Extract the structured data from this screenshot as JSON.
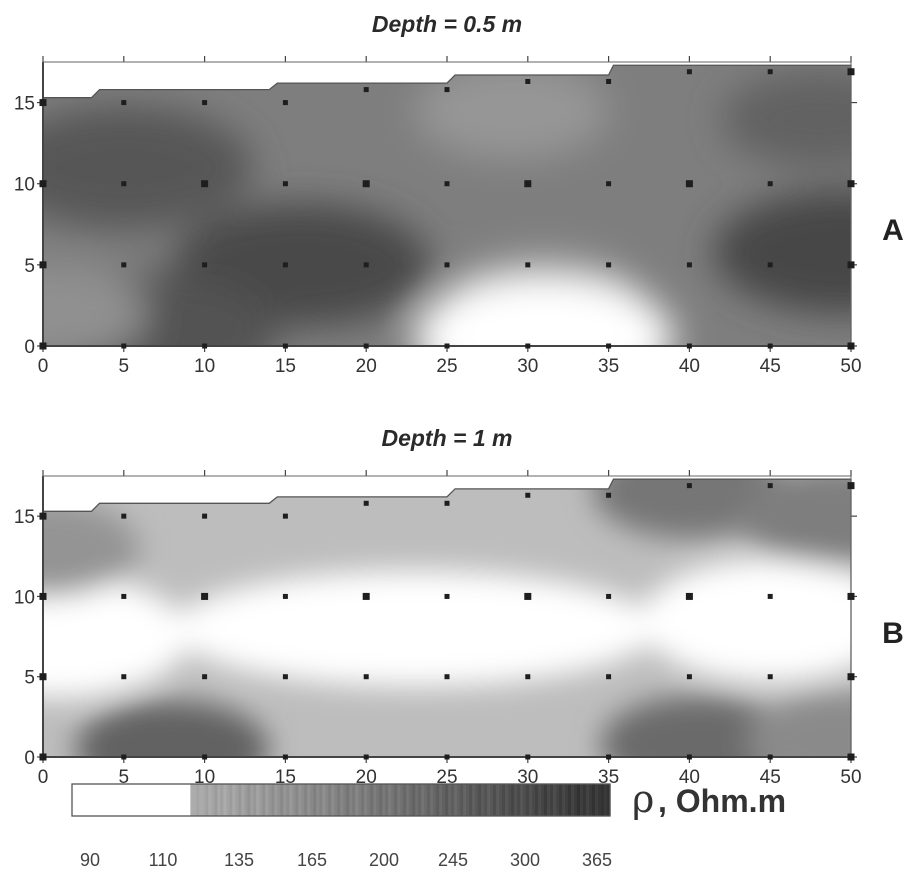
{
  "chart_data": [
    {
      "type": "heatmap",
      "title": "Depth = 0.5 m",
      "panel_label": "A",
      "xlabel": "",
      "ylabel": "",
      "xlim": [
        0,
        50
      ],
      "ylim": [
        0,
        17.5
      ],
      "xticks": [
        "0",
        "5",
        "10",
        "15",
        "20",
        "25",
        "30",
        "35",
        "40",
        "45",
        "50"
      ],
      "yticks": [
        "0",
        "5",
        "10",
        "15"
      ],
      "grid": false,
      "measurement_points": {
        "x": [
          0,
          5,
          10,
          15,
          20,
          25,
          30,
          35,
          40,
          45,
          50
        ],
        "y": [
          0,
          5,
          10,
          15
        ]
      },
      "top_boundary": [
        [
          0,
          15.3
        ],
        [
          3,
          15.3
        ],
        [
          3.5,
          15.8
        ],
        [
          14,
          15.8
        ],
        [
          14.5,
          16.2
        ],
        [
          25,
          16.2
        ],
        [
          25.5,
          16.7
        ],
        [
          35,
          16.7
        ],
        [
          35.3,
          17.3
        ],
        [
          50,
          17.3
        ]
      ],
      "anomalies": [
        {
          "x": 5,
          "y": 11,
          "value": 330
        },
        {
          "x": 16,
          "y": 5,
          "value": 360
        },
        {
          "x": 6.5,
          "y": 0.6,
          "value": 340
        },
        {
          "x": 49.5,
          "y": 5.8,
          "value": 370
        },
        {
          "x": 48,
          "y": 14,
          "value": 300
        },
        {
          "x": 29,
          "y": 14.5,
          "value": 170
        },
        {
          "x": 31,
          "y": 3,
          "value": 165
        },
        {
          "x": 31,
          "y": 0.5,
          "value": 95
        },
        {
          "x": 0.5,
          "y": 2,
          "value": 185
        }
      ]
    },
    {
      "type": "heatmap",
      "title": "Depth = 1 m",
      "panel_label": "B",
      "xlabel": "",
      "ylabel": "",
      "xlim": [
        0,
        50
      ],
      "ylim": [
        0,
        17.5
      ],
      "xticks": [
        "0",
        "5",
        "10",
        "15",
        "20",
        "25",
        "30",
        "35",
        "40",
        "45",
        "50"
      ],
      "yticks": [
        "0",
        "5",
        "10",
        "15"
      ],
      "grid": false,
      "measurement_points": {
        "x": [
          0,
          5,
          10,
          15,
          20,
          25,
          30,
          35,
          40,
          45,
          50
        ],
        "y": [
          0,
          5,
          10,
          15
        ]
      },
      "top_boundary": [
        [
          0,
          15.3
        ],
        [
          3,
          15.3
        ],
        [
          3.5,
          15.8
        ],
        [
          14,
          15.8
        ],
        [
          14.5,
          16.2
        ],
        [
          25,
          16.2
        ],
        [
          25.5,
          16.7
        ],
        [
          35,
          16.7
        ],
        [
          35.3,
          17.3
        ],
        [
          50,
          17.3
        ]
      ],
      "anomalies": [
        {
          "x": 23,
          "y": 8,
          "value": 95
        },
        {
          "x": 1,
          "y": 7.5,
          "value": 100
        },
        {
          "x": 45,
          "y": 8.5,
          "value": 100
        },
        {
          "x": 8,
          "y": 0.5,
          "value": 300
        },
        {
          "x": 40.5,
          "y": 0.8,
          "value": 280
        },
        {
          "x": 40,
          "y": 16.6,
          "value": 250
        },
        {
          "x": 49,
          "y": 15,
          "value": 230
        },
        {
          "x": 0,
          "y": 13,
          "value": 175
        },
        {
          "x": 49.5,
          "y": 1,
          "value": 200
        }
      ]
    }
  ],
  "colorbar": {
    "title_symbol": "ρ",
    "title_text": ", Ohm.m",
    "labels": [
      "90",
      "110",
      "135",
      "165",
      "200",
      "245",
      "300",
      "365"
    ],
    "boundaries": [
      90,
      125,
      400
    ],
    "colors": {
      "low": "#ffffff",
      "high_start": "#a8a8a8",
      "high_end": "#3a3a3a"
    }
  }
}
